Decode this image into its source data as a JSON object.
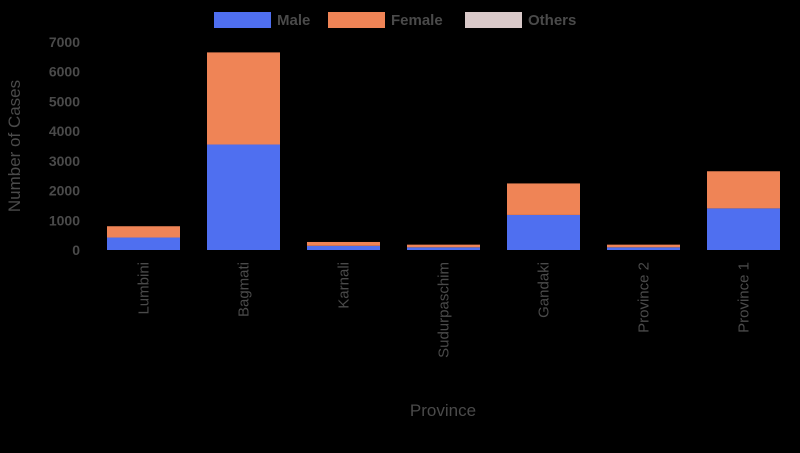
{
  "chart_data": {
    "type": "bar",
    "stacked": true,
    "categories": [
      "Lumbini",
      "Bagmati",
      "Karnali",
      "Sudurpaschim",
      "Gandaki",
      "Province 2",
      "Province 1"
    ],
    "series": [
      {
        "name": "Male",
        "color": "#4f6ff0",
        "values": [
          420,
          3550,
          140,
          90,
          1180,
          90,
          1400
        ]
      },
      {
        "name": "Female",
        "color": "#ef8456",
        "values": [
          380,
          3100,
          130,
          90,
          1060,
          90,
          1250
        ]
      },
      {
        "name": "Others",
        "color": "#d9c9c9",
        "values": [
          0,
          0,
          0,
          0,
          0,
          0,
          0
        ]
      }
    ],
    "xlabel": "Province",
    "ylabel": "Number of Cases",
    "ylim": [
      0,
      7000
    ],
    "yticks": [
      0,
      1000,
      2000,
      3000,
      4000,
      5000,
      6000,
      7000
    ],
    "legend_position": "top-center",
    "grid": false
  }
}
